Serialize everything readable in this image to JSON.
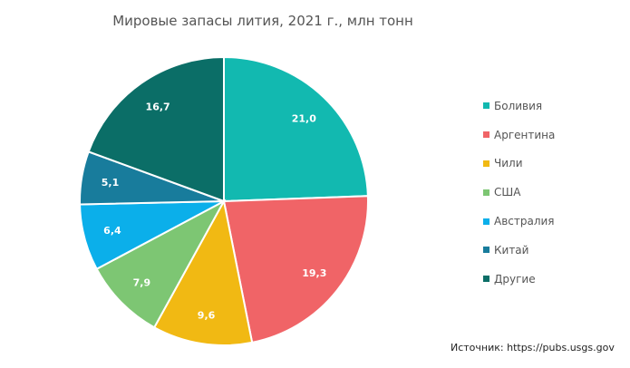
{
  "chart_data": {
    "type": "pie",
    "title": "Мировые запасы лития, 2021 г., млн тонн",
    "categories": [
      "Боливия",
      "Аргентина",
      "Чили",
      "США",
      "Австралия",
      "Китай",
      "Другие"
    ],
    "values": [
      21.0,
      19.3,
      9.6,
      7.9,
      6.4,
      5.1,
      16.7
    ],
    "value_labels": [
      "21,0",
      "19,3",
      "9,6",
      "7,9",
      "6,4",
      "5,1",
      "16,7"
    ],
    "colors": [
      "#12B9B0",
      "#F06467",
      "#F1B913",
      "#7DC673",
      "#0BAFEA",
      "#187C9C",
      "#0B6E67"
    ],
    "start_angle_deg": 0,
    "direction": "clockwise",
    "legend_position": "right",
    "source": "Источник: https://pubs.usgs.gov"
  },
  "title": "Мировые запасы лития, 2021 г., млн тонн",
  "legend": [
    {
      "label": "Боливия"
    },
    {
      "label": "Аргентина"
    },
    {
      "label": "Чили"
    },
    {
      "label": "США"
    },
    {
      "label": "Австралия"
    },
    {
      "label": "Китай"
    },
    {
      "label": "Другие"
    }
  ],
  "source": "Источник: https://pubs.usgs.gov"
}
